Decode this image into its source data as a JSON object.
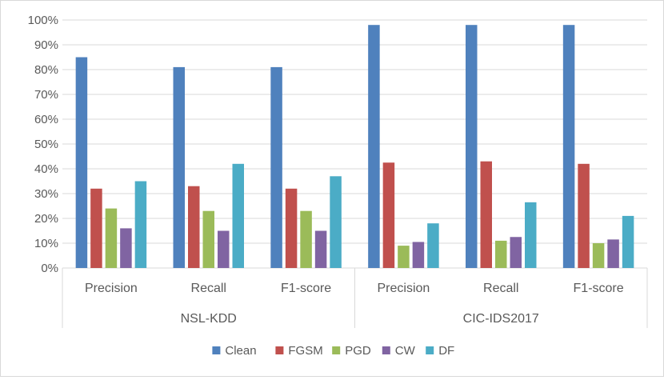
{
  "chart_data": {
    "type": "bar",
    "title": "",
    "xlabel": "",
    "ylabel": "",
    "ylim": [
      0,
      100
    ],
    "yticks": [
      "0%",
      "10%",
      "20%",
      "30%",
      "40%",
      "50%",
      "60%",
      "70%",
      "80%",
      "90%",
      "100%"
    ],
    "grid": true,
    "legend_position": "bottom",
    "groups": [
      {
        "name": "NSL-KDD",
        "categories": [
          "Precision",
          "Recall",
          "F1-score"
        ]
      },
      {
        "name": "CIC-IDS2017",
        "categories": [
          "Precision",
          "Recall",
          "F1-score"
        ]
      }
    ],
    "categories": [
      "Precision",
      "Recall",
      "F1-score",
      "Precision",
      "Recall",
      "F1-score"
    ],
    "series": [
      {
        "name": "Clean",
        "color": "#4f81bd",
        "values": [
          85,
          81,
          81,
          98,
          98,
          98
        ]
      },
      {
        "name": "FGSM",
        "color": "#c0504d",
        "values": [
          32,
          33,
          32,
          42.5,
          43,
          42
        ]
      },
      {
        "name": "PGD",
        "color": "#9bbb59",
        "values": [
          24,
          23,
          23,
          9,
          11,
          10
        ]
      },
      {
        "name": "CW",
        "color": "#8064a2",
        "values": [
          16,
          15,
          15,
          10.5,
          12.5,
          11.5
        ]
      },
      {
        "name": "DF",
        "color": "#4bacc6",
        "values": [
          35,
          42,
          37,
          18,
          26.5,
          21
        ]
      }
    ]
  }
}
